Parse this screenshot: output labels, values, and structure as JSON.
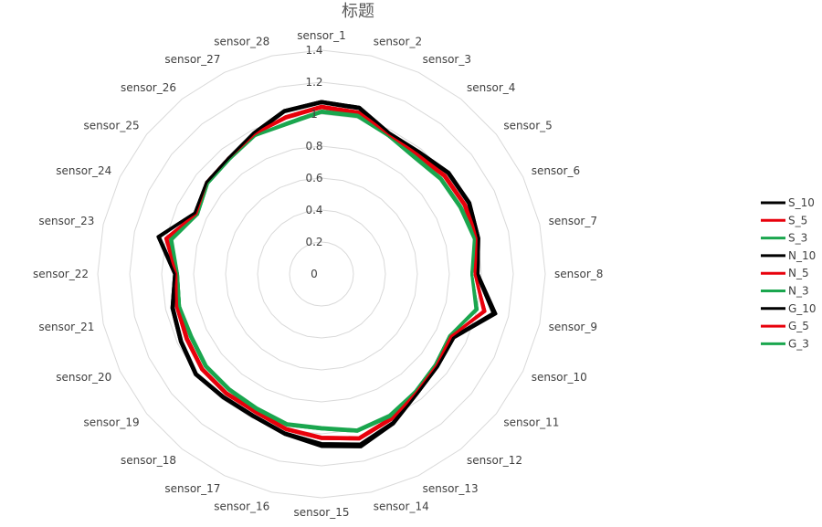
{
  "chart_data": {
    "type": "radar",
    "title": "标题",
    "categories": [
      "sensor_1",
      "sensor_2",
      "sensor_3",
      "sensor_4",
      "sensor_5",
      "sensor_6",
      "sensor_7",
      "sensor_8",
      "sensor_9",
      "sensor_10",
      "sensor_11",
      "sensor_12",
      "sensor_13",
      "sensor_14",
      "sensor_15",
      "sensor_16",
      "sensor_17",
      "sensor_18",
      "sensor_19",
      "sensor_20",
      "sensor_21",
      "sensor_22",
      "sensor_23",
      "sensor_24",
      "sensor_25",
      "sensor_26",
      "sensor_27",
      "sensor_28"
    ],
    "rlim": [
      0,
      1.4
    ],
    "ticks": [
      "0",
      "0.2",
      "0.4",
      "0.6",
      "0.8",
      "1",
      "1.2",
      "1.4"
    ],
    "grid": true,
    "legend_position": "right",
    "series": [
      {
        "name": "S_10",
        "color": "#000000",
        "values": [
          1.08,
          1.07,
          0.98,
          0.98,
          1.02,
          1.03,
          1.01,
          0.98,
          1.12,
          0.92,
          0.93,
          0.96,
          1.04,
          1.11,
          1.08,
          1.03,
          0.99,
          0.99,
          1.01,
          0.98,
          0.96,
          0.92,
          1.05,
          0.88,
          0.92,
          0.93,
          0.98,
          1.05
        ]
      },
      {
        "name": "S_5",
        "color": "#e8000b",
        "values": [
          1.05,
          1.04,
          0.97,
          0.96,
          0.99,
          1.0,
          1.0,
          0.96,
          1.05,
          0.9,
          0.92,
          0.95,
          1.01,
          1.06,
          1.03,
          1.0,
          0.96,
          0.96,
          0.96,
          0.94,
          0.93,
          0.91,
          1.0,
          0.87,
          0.92,
          0.93,
          0.97,
          1.01
        ]
      },
      {
        "name": "S_3",
        "color": "#1aa64e",
        "values": [
          1.02,
          1.02,
          0.96,
          0.94,
          0.96,
          0.97,
          0.99,
          0.94,
          1.0,
          0.89,
          0.91,
          0.94,
          0.99,
          1.01,
          0.97,
          0.97,
          0.94,
          0.93,
          0.93,
          0.91,
          0.91,
          0.9,
          0.97,
          0.86,
          0.91,
          0.92,
          0.96,
          0.97
        ]
      },
      {
        "name": "N_10",
        "color": "#000000",
        "values": [
          1.07,
          1.06,
          0.97,
          0.97,
          1.01,
          1.02,
          1.0,
          0.97,
          1.1,
          0.91,
          0.93,
          0.96,
          1.03,
          1.09,
          1.06,
          1.02,
          0.98,
          0.98,
          1.0,
          0.97,
          0.95,
          0.91,
          1.04,
          0.88,
          0.92,
          0.93,
          0.97,
          1.04
        ]
      },
      {
        "name": "N_5",
        "color": "#e8000b",
        "values": [
          1.04,
          1.03,
          0.96,
          0.95,
          0.98,
          0.99,
          0.99,
          0.96,
          1.04,
          0.9,
          0.92,
          0.95,
          1.0,
          1.05,
          1.02,
          0.99,
          0.95,
          0.95,
          0.95,
          0.93,
          0.92,
          0.91,
          0.99,
          0.87,
          0.92,
          0.93,
          0.97,
          1.0
        ]
      },
      {
        "name": "N_3",
        "color": "#1aa64e",
        "values": [
          1.01,
          1.01,
          0.96,
          0.93,
          0.95,
          0.96,
          0.98,
          0.94,
          0.99,
          0.89,
          0.91,
          0.94,
          0.98,
          1.0,
          0.96,
          0.96,
          0.93,
          0.92,
          0.92,
          0.9,
          0.91,
          0.9,
          0.96,
          0.86,
          0.91,
          0.92,
          0.96,
          0.96
        ]
      },
      {
        "name": "G_10",
        "color": "#000000",
        "values": [
          1.08,
          1.07,
          0.98,
          0.98,
          1.02,
          1.03,
          1.01,
          0.98,
          1.11,
          0.92,
          0.93,
          0.96,
          1.04,
          1.1,
          1.07,
          1.03,
          0.99,
          0.99,
          1.01,
          0.98,
          0.96,
          0.92,
          1.05,
          0.88,
          0.92,
          0.93,
          0.98,
          1.05
        ]
      },
      {
        "name": "G_5",
        "color": "#e8000b",
        "values": [
          1.05,
          1.04,
          0.97,
          0.96,
          0.99,
          1.0,
          1.0,
          0.96,
          1.05,
          0.9,
          0.92,
          0.95,
          1.01,
          1.06,
          1.03,
          1.0,
          0.96,
          0.96,
          0.96,
          0.94,
          0.93,
          0.91,
          1.0,
          0.87,
          0.92,
          0.93,
          0.97,
          1.01
        ]
      },
      {
        "name": "G_3",
        "color": "#1aa64e",
        "values": [
          1.02,
          1.02,
          0.96,
          0.94,
          0.96,
          0.97,
          0.99,
          0.94,
          1.0,
          0.89,
          0.91,
          0.94,
          0.99,
          1.01,
          0.97,
          0.97,
          0.94,
          0.93,
          0.93,
          0.91,
          0.91,
          0.9,
          0.97,
          0.86,
          0.91,
          0.92,
          0.96,
          0.97
        ]
      }
    ]
  }
}
